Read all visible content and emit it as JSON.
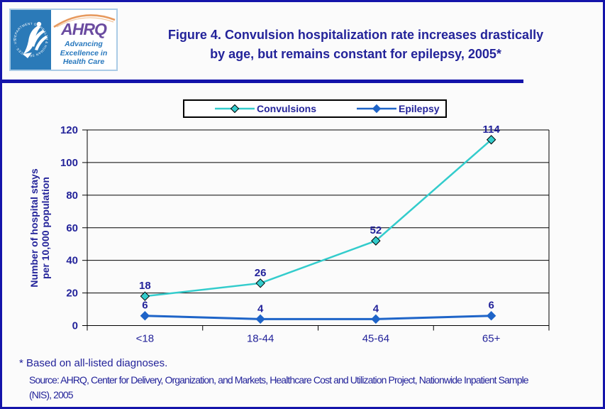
{
  "page": {
    "bg": "#FBFBFB",
    "border_color": "#1414AA",
    "navy": "#23239A",
    "seal_blue": "#2B7AB8",
    "ahrq_purple": "#6A4BA0",
    "arc_orange": "#E79A5F"
  },
  "header": {
    "logo": {
      "seal_ring_text": "DEPARTMENT OF HEALTH & HUMAN SERVICES · USA ·",
      "acronym": "AHRQ",
      "tagline_lines": [
        "Advancing",
        "Excellence in",
        "Health Care"
      ]
    },
    "title_lines": [
      "Figure 4. Convulsion hospitalization rate increases drastically",
      "by age, but remains constant for epilepsy, 2005*"
    ]
  },
  "chart_data": {
    "type": "line",
    "categories": [
      "<18",
      "18-44",
      "45-64",
      "65+"
    ],
    "series": [
      {
        "name": "Convulsions",
        "values": [
          18,
          26,
          52,
          114
        ],
        "color": "#33CCCC",
        "marker": "diamond",
        "marker_outline": "#000000"
      },
      {
        "name": "Epilepsy",
        "values": [
          6,
          4,
          4,
          6
        ],
        "color": "#1E64C8",
        "marker": "diamond",
        "marker_outline": "#1E64C8"
      }
    ],
    "ylabel_lines": [
      "Number of hospital stays",
      "per 10,000 population"
    ],
    "xlabel": "",
    "ylim": [
      0,
      120
    ],
    "yticks": [
      0,
      20,
      40,
      60,
      80,
      100,
      120
    ],
    "grid": true,
    "gridline_color": "#000000",
    "legend_position": "top",
    "data_labels": true
  },
  "footer": {
    "footnote": "* Based on all-listed diagnoses.",
    "source_lines": [
      "Source: AHRQ, Center for Delivery, Organization, and Markets, Healthcare Cost and Utilization Project, Nationwide Inpatient Sample",
      "(NIS), 2005"
    ]
  }
}
